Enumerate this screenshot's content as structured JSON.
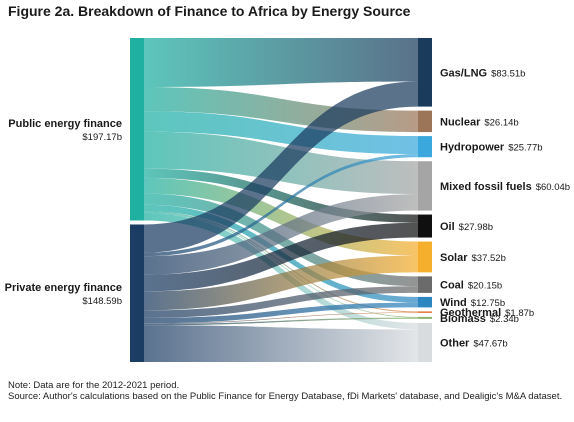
{
  "chart_data": {
    "type": "sankey",
    "title": "Figure 2a. Breakdown of Finance to Africa by Energy Source",
    "unit": "$b",
    "sources": [
      {
        "name": "Public energy finance",
        "value_label": "$197.17b",
        "value": 197.17,
        "color": "#1fb0a2"
      },
      {
        "name": "Private energy finance",
        "value_label": "$148.59b",
        "value": 148.59,
        "color": "#1b3c63"
      }
    ],
    "targets": [
      {
        "name": "Gas/LNG",
        "value_label": "$83.51b",
        "value": 83.51,
        "color": "#1a3b5c"
      },
      {
        "name": "Nuclear",
        "value_label": "$26.14b",
        "value": 26.14,
        "color": "#9c7558"
      },
      {
        "name": "Hydropower",
        "value_label": "$25.77b",
        "value": 25.77,
        "color": "#3aa8dc"
      },
      {
        "name": "Mixed fossil fuels",
        "value_label": "$60.04b",
        "value": 60.04,
        "color": "#a5a5a5"
      },
      {
        "name": "Oil",
        "value_label": "$27.98b",
        "value": 27.98,
        "color": "#101010"
      },
      {
        "name": "Solar",
        "value_label": "$37.52b",
        "value": 37.52,
        "color": "#f6ae2d"
      },
      {
        "name": "Coal",
        "value_label": "$20.15b",
        "value": 20.15,
        "color": "#6b6b6b"
      },
      {
        "name": "Wind",
        "value_label": "$12.75b",
        "value": 12.75,
        "color": "#2e86c1"
      },
      {
        "name": "Geothermal",
        "value_label": "$1.87b",
        "value": 1.87,
        "color": "#e07b39"
      },
      {
        "name": "Biomass",
        "value_label": "$2.34b",
        "value": 2.34,
        "color": "#8cb369"
      },
      {
        "name": "Other",
        "value_label": "$47.67b",
        "value": 47.67,
        "color": "#d9dcdf"
      }
    ],
    "flows": [
      {
        "source": "Public energy finance",
        "target": "Gas/LNG",
        "value": 53.0
      },
      {
        "source": "Public energy finance",
        "target": "Nuclear",
        "value": 26.14
      },
      {
        "source": "Public energy finance",
        "target": "Hydropower",
        "value": 22.0
      },
      {
        "source": "Public energy finance",
        "target": "Mixed fossil fuels",
        "value": 40.0
      },
      {
        "source": "Public energy finance",
        "target": "Oil",
        "value": 10.0
      },
      {
        "source": "Public energy finance",
        "target": "Solar",
        "value": 17.0
      },
      {
        "source": "Public energy finance",
        "target": "Coal",
        "value": 12.0
      },
      {
        "source": "Public energy finance",
        "target": "Wind",
        "value": 7.0
      },
      {
        "source": "Public energy finance",
        "target": "Geothermal",
        "value": 1.2
      },
      {
        "source": "Public energy finance",
        "target": "Biomass",
        "value": 0.8
      },
      {
        "source": "Public energy finance",
        "target": "Other",
        "value": 8.03
      },
      {
        "source": "Private energy finance",
        "target": "Gas/LNG",
        "value": 30.51
      },
      {
        "source": "Private energy finance",
        "target": "Hydropower",
        "value": 3.77
      },
      {
        "source": "Private energy finance",
        "target": "Mixed fossil fuels",
        "value": 20.04
      },
      {
        "source": "Private energy finance",
        "target": "Oil",
        "value": 17.98
      },
      {
        "source": "Private energy finance",
        "target": "Solar",
        "value": 20.52
      },
      {
        "source": "Private energy finance",
        "target": "Coal",
        "value": 8.15
      },
      {
        "source": "Private energy finance",
        "target": "Wind",
        "value": 5.75
      },
      {
        "source": "Private energy finance",
        "target": "Geothermal",
        "value": 0.67
      },
      {
        "source": "Private energy finance",
        "target": "Biomass",
        "value": 1.54
      },
      {
        "source": "Private energy finance",
        "target": "Other",
        "value": 39.64
      }
    ]
  },
  "notes": [
    "Note: Data are for the 2012-2021 period.",
    "Source: Author's calculations based on the Public Finance for Energy Database, fDi Markets' database, and Dealigic's M&A dataset."
  ]
}
